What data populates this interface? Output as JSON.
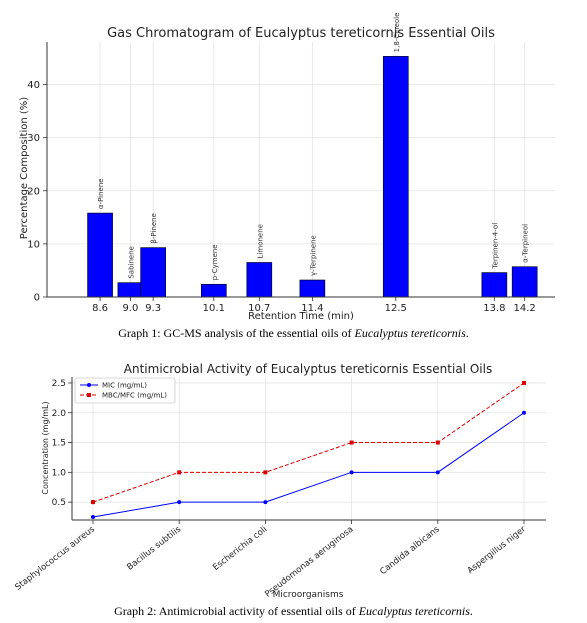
{
  "chart_data": [
    {
      "type": "bar",
      "title": "Gas Chromatogram of Eucalyptus tereticornis Essential Oils",
      "xlabel": "Retention Time (min)",
      "ylabel": "Percentage Composition (%)",
      "xlim": [
        7.9,
        14.6
      ],
      "ylim": [
        0,
        48
      ],
      "yticks": [
        0,
        10,
        20,
        30,
        40
      ],
      "grid": true,
      "color": "#0000ff",
      "categories": [
        "8.6",
        "9.0",
        "9.3",
        "10.1",
        "10.7",
        "11.4",
        "12.5",
        "13.8",
        "14.2"
      ],
      "x": [
        8.6,
        9.0,
        9.3,
        10.1,
        10.7,
        11.4,
        12.5,
        13.8,
        14.2
      ],
      "values": [
        15.8,
        2.7,
        9.3,
        2.4,
        6.5,
        3.2,
        45.3,
        4.6,
        5.7
      ],
      "bar_labels": [
        "α-Pinene",
        "Sabinene",
        "β-Pinene",
        "p-Cymene",
        "Limonene",
        "γ-Terpinene",
        "1,8-Cineole",
        "Terpinen-4-ol",
        "α-Terpineol"
      ]
    },
    {
      "type": "line",
      "title": "Antimicrobial Activity of Eucalyptus tereticornis Essential Oils",
      "xlabel": "Microorganisms",
      "ylabel": "Concentration (mg/mL)",
      "ylim": [
        0.2,
        2.6
      ],
      "yticks": [
        0.5,
        1.0,
        1.5,
        2.0,
        2.5
      ],
      "grid": true,
      "legend": "top-left",
      "categories": [
        "Staphylococcus aureus",
        "Bacillus subtilis",
        "Escherichia coli",
        "Pseudomonas aeruginosa",
        "Candida albicans",
        "Aspergillus niger"
      ],
      "series": [
        {
          "name": "MIC (mg/mL)",
          "values": [
            0.25,
            0.5,
            0.5,
            1.0,
            1.0,
            2.0
          ],
          "color": "#0000ff",
          "style": "solid"
        },
        {
          "name": "MBC/MFC (mg/mL)",
          "values": [
            0.5,
            1.0,
            1.0,
            1.5,
            1.5,
            2.5
          ],
          "color": "#e00000",
          "style": "dashed"
        }
      ]
    }
  ],
  "captions": {
    "graph1_prefix": "Graph 1: GC-MS analysis of the essential oils of ",
    "graph1_species": "Eucalyptus tereticornis",
    "graph1_suffix": ".",
    "graph2_prefix": "Graph 2: Antimicrobial activity of essential oils of ",
    "graph2_species": "Eucalyptus tereticornis",
    "graph2_suffix": "."
  }
}
